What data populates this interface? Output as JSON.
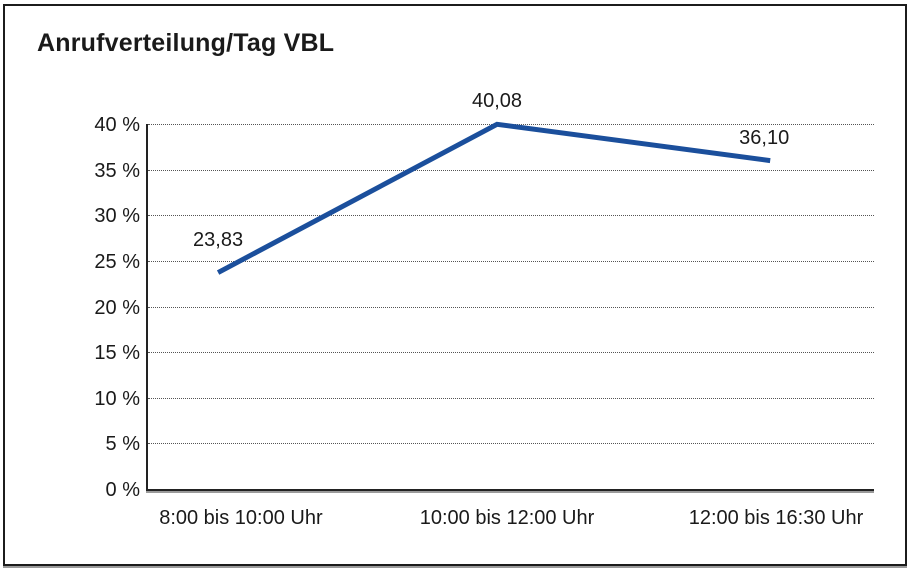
{
  "chart_data": {
    "type": "line",
    "title": "Anrufverteilung/Tag VBL",
    "categories": [
      "8:00 bis 10:00 Uhr",
      "10:00 bis 12:00 Uhr",
      "12:00 bis 16:30 Uhr"
    ],
    "values": [
      23.83,
      40.08,
      36.1
    ],
    "data_labels": [
      "23,83",
      "40,08",
      "36,10"
    ],
    "xlabel": "",
    "ylabel": "",
    "ylim": [
      0,
      40
    ],
    "y_ticks": [
      0,
      5,
      10,
      15,
      20,
      25,
      30,
      35,
      40
    ],
    "y_tick_labels": [
      "0 %",
      "5 %",
      "10 %",
      "15 %",
      "20 %",
      "25 %",
      "30 %",
      "35 %",
      "40 %"
    ],
    "grid": "horizontal-dotted",
    "legend": "none",
    "line_color": "#1B4F9C",
    "axis_color": "#222222",
    "axis_shadow_color": "#9A9A9A"
  }
}
